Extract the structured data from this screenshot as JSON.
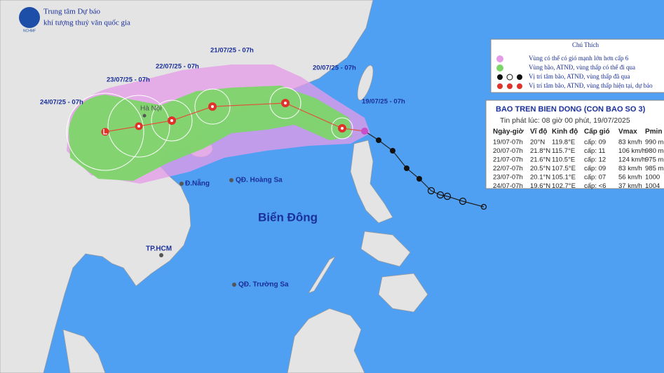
{
  "header": {
    "title": "Trung tâm Dự báo",
    "subtitle": "khí tượng thuỷ văn quốc gia",
    "logo": "NCHMF"
  },
  "track_labels": [
    "24/07/25 - 07h",
    "23/07/25 - 07h",
    "22/07/25 - 07h",
    "21/07/25 - 07h",
    "20/07/25 - 07h",
    "19/07/25 - 07h"
  ],
  "places": {
    "hanoi": "Hà Nội",
    "danang": "Đ.Nẵng",
    "hoangsa": "QĐ. Hoàng Sa",
    "biendong": "Biển Đông",
    "tphcm": "TP.HCM",
    "truongsa": "QĐ. Trường Sa"
  },
  "legend": {
    "title": "Chú Thích",
    "items": [
      "Vùng có thể có gió mạnh lớn hơn cấp 6",
      "Vùng bão, ATNĐ, vùng thấp có thể đi qua",
      "Vị trí tâm bão, ATNĐ, vùng thấp đã qua",
      "Vị trí tâm bão, ATNĐ, vùng thấp hiện tại, dự báo"
    ]
  },
  "table": {
    "title": "BAO TREN BIEN DONG (CON BAO SO 3)",
    "issued": "Tin phát lúc: 08 giờ 00 phút, 19/07/2025",
    "headers": [
      "Ngày-giờ",
      "Vĩ độ",
      "Kinh độ",
      "Cấp gió",
      "Vmax",
      "Pmin"
    ],
    "rows": [
      [
        "19/07-07h",
        "20°N",
        "119.8°E",
        "cấp: 09",
        "83 km/h",
        "990 m"
      ],
      [
        "20/07-07h",
        "21.8°N",
        "115.7°E",
        "cấp: 11",
        "106 km/h",
        "980 m"
      ],
      [
        "21/07-07h",
        "21.6°N",
        "110.5°E",
        "cấp: 12",
        "124 km/h",
        "975 m"
      ],
      [
        "22/07-07h",
        "20.5°N",
        "107.5°E",
        "cấp: 09",
        "83 km/h",
        "985 m"
      ],
      [
        "23/07-07h",
        "20.1°N",
        "105.1°E",
        "cấp: 07",
        "56 km/h",
        "1000"
      ],
      [
        "24/07-07h",
        "19.6°N",
        "102.7°E",
        "cấp: <6",
        "37 km/h",
        "1004"
      ]
    ]
  }
}
